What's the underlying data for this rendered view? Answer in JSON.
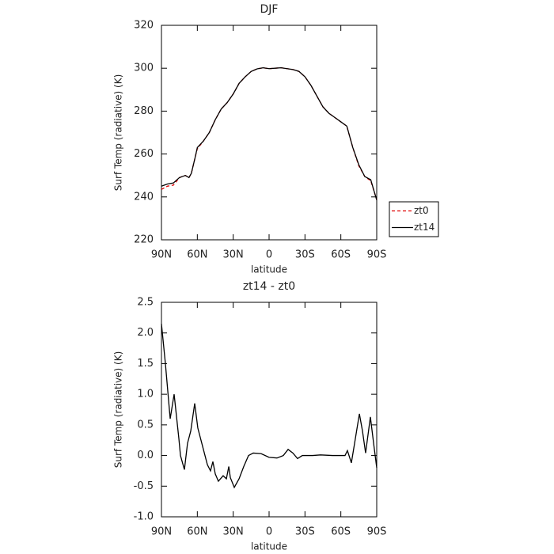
{
  "chart_data": [
    {
      "type": "line",
      "title": "DJF",
      "ylabel": "Surf Temp (radiative) (K)",
      "xlabel": "latitude",
      "x": [
        90,
        85,
        80,
        75,
        70,
        67,
        65,
        62,
        60,
        55,
        50,
        45,
        40,
        35,
        30,
        25,
        20,
        15,
        10,
        5,
        0,
        -5,
        -10,
        -15,
        -20,
        -25,
        -30,
        -35,
        -40,
        -45,
        -50,
        -55,
        -60,
        -65,
        -70,
        -75,
        -80,
        -85,
        -90
      ],
      "series": [
        {
          "name": "zt0",
          "color": "#e00000",
          "dash": true,
          "values": [
            243.5,
            245,
            245.5,
            249,
            250,
            249,
            251,
            258,
            262.5,
            266,
            270,
            276,
            281,
            284,
            288,
            293,
            296,
            298.5,
            299.7,
            300.2,
            299.8,
            300,
            300.2,
            299.8,
            299.4,
            298.5,
            296,
            292,
            287,
            282,
            279,
            277,
            275,
            273,
            263,
            254.5,
            249.5,
            247.5,
            238.7
          ]
        },
        {
          "name": "zt14",
          "color": "#000000",
          "dash": false,
          "values": [
            245,
            246,
            246.5,
            249,
            250,
            249,
            251,
            258,
            263,
            266,
            270,
            276,
            281,
            284,
            288,
            293,
            296,
            298.5,
            299.7,
            300.2,
            299.8,
            300,
            300.2,
            299.8,
            299.4,
            298.5,
            296,
            292,
            287,
            282,
            279,
            277,
            275,
            273,
            263,
            255,
            249.5,
            248,
            238.5
          ]
        }
      ],
      "xlim": [
        90,
        -90
      ],
      "xticks": [
        {
          "value": 90,
          "label": "90N"
        },
        {
          "value": 60,
          "label": "60N"
        },
        {
          "value": 30,
          "label": "30N"
        },
        0,
        {
          "value": -30,
          "label": "30S"
        },
        {
          "value": -60,
          "label": "60S"
        },
        {
          "value": -90,
          "label": "90S"
        }
      ],
      "ylim": [
        220,
        320
      ],
      "yticks": [
        220,
        240,
        260,
        280,
        300,
        320
      ],
      "legend": "right"
    },
    {
      "type": "line",
      "title": "zt14 - zt0",
      "ylabel": "Surf Temp (radiative) (K)",
      "xlabel": "latitude",
      "x": [
        90,
        86.7,
        82.7,
        79.4,
        75.4,
        74.1,
        70.8,
        68.2,
        65.5,
        62.2,
        59.6,
        55.6,
        51.6,
        49,
        47,
        45,
        42.4,
        38.4,
        35.7,
        33.7,
        32.4,
        29.1,
        25.1,
        21.2,
        17.2,
        13.2,
        6.6,
        0,
        -6.6,
        -11.9,
        -15.9,
        -19.9,
        -23.8,
        -27.8,
        -36.4,
        -43,
        -53,
        -63.5,
        -65.5,
        -68.8,
        -71.5,
        -75.5,
        -78.1,
        -80.7,
        -84.7,
        -87.4,
        -90
      ],
      "series": [
        {
          "name": "zt14 - zt0",
          "color": "#000000",
          "dash": false,
          "values": [
            2.15,
            1.5,
            0.6,
            1.0,
            0.27,
            0.0,
            -0.23,
            0.2,
            0.4,
            0.85,
            0.45,
            0.15,
            -0.15,
            -0.25,
            -0.1,
            -0.3,
            -0.42,
            -0.33,
            -0.38,
            -0.18,
            -0.36,
            -0.52,
            -0.38,
            -0.18,
            0.0,
            0.04,
            0.03,
            -0.03,
            -0.04,
            0.0,
            0.1,
            0.04,
            -0.05,
            0.0,
            0.0,
            0.01,
            0.0,
            0.0,
            0.08,
            -0.12,
            0.2,
            0.68,
            0.4,
            0.04,
            0.63,
            0.2,
            -0.2
          ]
        }
      ],
      "xlim": [
        90,
        -90
      ],
      "xticks": [
        {
          "value": 90,
          "label": "90N"
        },
        {
          "value": 60,
          "label": "60N"
        },
        {
          "value": 30,
          "label": "30N"
        },
        0,
        {
          "value": -30,
          "label": "30S"
        },
        {
          "value": -60,
          "label": "60S"
        },
        {
          "value": -90,
          "label": "90S"
        }
      ],
      "ylim": [
        -1.0,
        2.5
      ],
      "yticks": [
        {
          "value": -1.0,
          "label": "-1.0"
        },
        -0.5,
        {
          "value": 0.0,
          "label": "0.0"
        },
        0.5,
        {
          "value": 1.0,
          "label": "1.0"
        },
        1.5,
        {
          "value": 2.0,
          "label": "2.0"
        },
        2.5
      ]
    }
  ]
}
